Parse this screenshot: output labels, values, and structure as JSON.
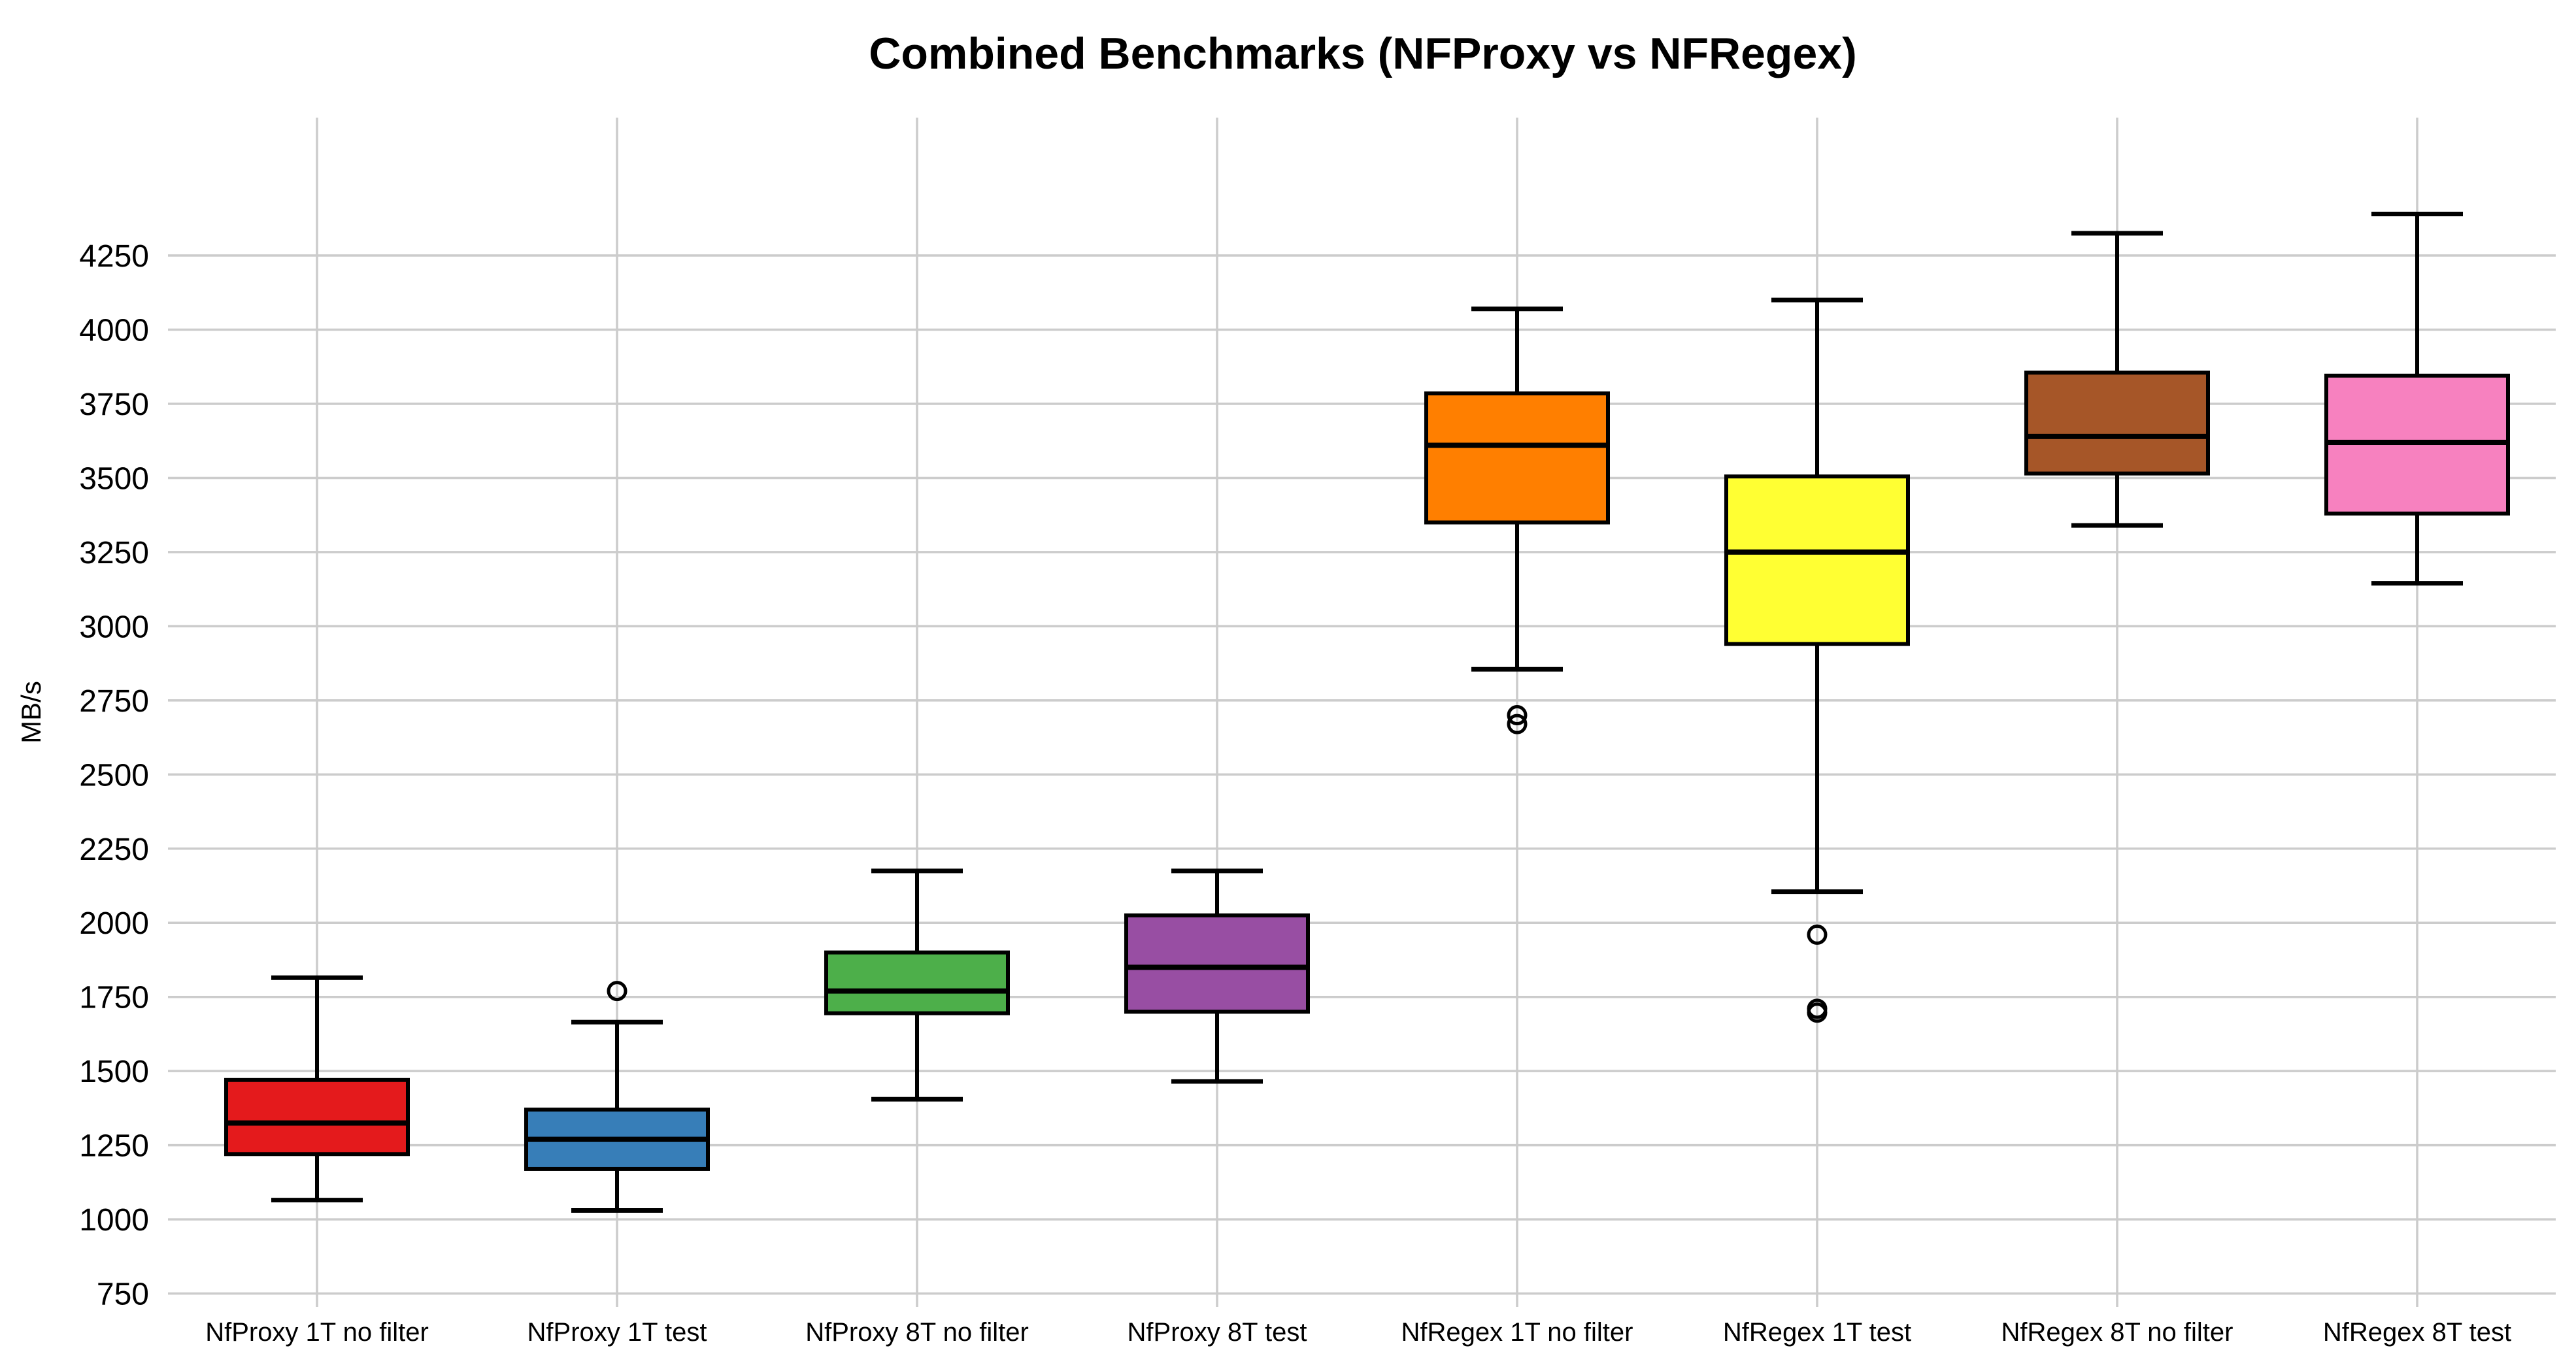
{
  "page": {
    "background": "#ffffff"
  },
  "chart_data": {
    "type": "box",
    "title": "Combined Benchmarks (NFProxy vs NFRegex)",
    "ylabel": "MB/s",
    "xlabel": "",
    "ylim": [
      705,
      4715
    ],
    "yticks": [
      750,
      1000,
      1250,
      1500,
      1750,
      2000,
      2250,
      2500,
      2750,
      3000,
      3250,
      3500,
      3750,
      4000,
      4250
    ],
    "grid": {
      "horizontal": true,
      "vertical": true,
      "color": "#cccccc"
    },
    "legend": "none",
    "boxes": [
      {
        "label": "NfProxy 1T no filter",
        "color": "#e41a1c",
        "whisker_low": 1065,
        "q1": 1220,
        "median": 1325,
        "q3": 1470,
        "whisker_high": 1815,
        "outliers": []
      },
      {
        "label": "NfProxy 1T test",
        "color": "#377eb8",
        "whisker_low": 1030,
        "q1": 1170,
        "median": 1270,
        "q3": 1370,
        "whisker_high": 1665,
        "outliers": [
          1770
        ]
      },
      {
        "label": "NfProxy 8T no filter",
        "color": "#4daf4a",
        "whisker_low": 1405,
        "q1": 1695,
        "median": 1770,
        "q3": 1900,
        "whisker_high": 2175,
        "outliers": []
      },
      {
        "label": "NfProxy 8T test",
        "color": "#984ea3",
        "whisker_low": 1465,
        "q1": 1700,
        "median": 1850,
        "q3": 2025,
        "whisker_high": 2175,
        "outliers": []
      },
      {
        "label": "NfRegex 1T no filter",
        "color": "#ff7f00",
        "whisker_low": 2855,
        "q1": 3350,
        "median": 3610,
        "q3": 3785,
        "whisker_high": 4070,
        "outliers": [
          2700,
          2670
        ]
      },
      {
        "label": "NfRegex 1T test",
        "color": "#ffff33",
        "whisker_low": 2105,
        "q1": 2940,
        "median": 3250,
        "q3": 3505,
        "whisker_high": 4100,
        "outliers": [
          1960,
          1710,
          1697
        ]
      },
      {
        "label": "NfRegex 8T no filter",
        "color": "#a65628",
        "whisker_low": 3340,
        "q1": 3515,
        "median": 3640,
        "q3": 3855,
        "whisker_high": 4325,
        "outliers": []
      },
      {
        "label": "NfRegex 8T test",
        "color": "#f781bf",
        "whisker_low": 3145,
        "q1": 3380,
        "median": 3620,
        "q3": 3845,
        "whisker_high": 4390,
        "outliers": []
      }
    ],
    "style": {
      "box_edge_color": "#000000",
      "median_color": "#000000",
      "whisker_color": "#000000",
      "outlier_shape": "open-circle"
    }
  }
}
